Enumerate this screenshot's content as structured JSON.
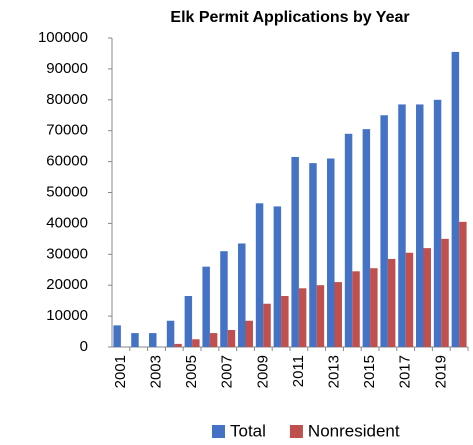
{
  "chart_data": {
    "type": "bar",
    "title": "Elk Permit Applications by Year",
    "categories": [
      "2001",
      null,
      "2003",
      null,
      "2005",
      null,
      "2007",
      null,
      "2009",
      null,
      "2011",
      null,
      "2013",
      null,
      "2015",
      null,
      "2017",
      null,
      "2019",
      null
    ],
    "series": [
      {
        "name": "Total",
        "color": "#4472c4",
        "values": [
          7000,
          4500,
          4500,
          8500,
          16500,
          26000,
          31000,
          33500,
          46500,
          45500,
          61500,
          59500,
          61000,
          69000,
          70500,
          75000,
          78500,
          78500,
          80000,
          95500
        ]
      },
      {
        "name": "Nonresident",
        "color": "#c0504d",
        "values": [
          0,
          0,
          0,
          1000,
          2500,
          4500,
          5500,
          8500,
          14000,
          16500,
          19000,
          20000,
          21000,
          24500,
          25500,
          28500,
          30500,
          32000,
          35000,
          40500
        ]
      }
    ],
    "ylim": [
      0,
      100000
    ],
    "yticks": [
      0,
      10000,
      20000,
      30000,
      40000,
      50000,
      60000,
      70000,
      80000,
      90000,
      100000
    ],
    "grid": false,
    "legend": "bottom"
  }
}
